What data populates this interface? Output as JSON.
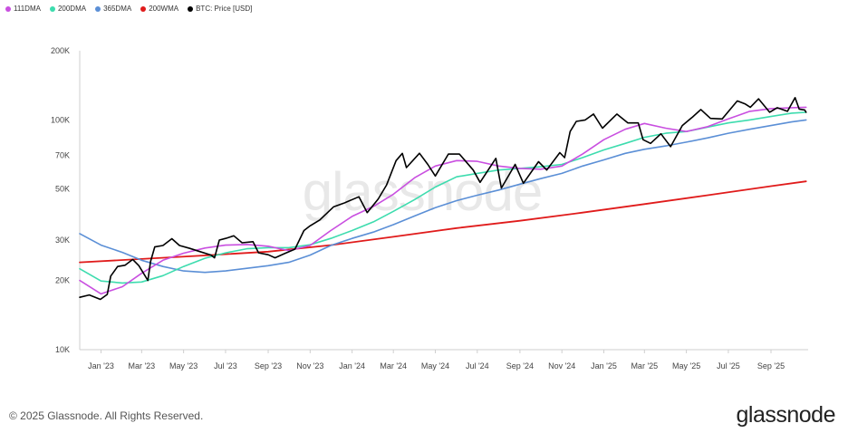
{
  "legend": [
    {
      "label": "111DMA",
      "color": "#c94fe0"
    },
    {
      "label": "200DMA",
      "color": "#3ddcae"
    },
    {
      "label": "365DMA",
      "color": "#5b8fd6"
    },
    {
      "label": "200WMA",
      "color": "#e01b1b"
    },
    {
      "label": "BTC: Price [USD]",
      "color": "#000000"
    }
  ],
  "watermark": "glassnode",
  "footer": {
    "copyright": "© 2025 Glassnode. All Rights Reserved.",
    "logo": "glassnode"
  },
  "chart_data": {
    "type": "line",
    "y_scale": "log",
    "ylim": [
      10000,
      200000
    ],
    "y_ticks": [
      {
        "value": 200000,
        "label": "200K"
      },
      {
        "value": 100000,
        "label": "100K"
      },
      {
        "value": 70000,
        "label": "70K"
      },
      {
        "value": 50000,
        "label": "50K"
      },
      {
        "value": 30000,
        "label": "30K"
      },
      {
        "value": 20000,
        "label": "20K"
      },
      {
        "value": 10000,
        "label": "10K"
      }
    ],
    "xlim": [
      "2022-12-01",
      "2025-10-25"
    ],
    "x_ticks": [
      {
        "date": "2023-01-01",
        "label": "Jan '23"
      },
      {
        "date": "2023-03-01",
        "label": "Mar '23"
      },
      {
        "date": "2023-05-01",
        "label": "May '23"
      },
      {
        "date": "2023-07-01",
        "label": "Jul '23"
      },
      {
        "date": "2023-09-01",
        "label": "Sep '23"
      },
      {
        "date": "2023-11-01",
        "label": "Nov '23"
      },
      {
        "date": "2024-01-01",
        "label": "Jan '24"
      },
      {
        "date": "2024-03-01",
        "label": "Mar '24"
      },
      {
        "date": "2024-05-01",
        "label": "May '24"
      },
      {
        "date": "2024-07-01",
        "label": "Jul '24"
      },
      {
        "date": "2024-09-01",
        "label": "Sep '24"
      },
      {
        "date": "2024-11-01",
        "label": "Nov '24"
      },
      {
        "date": "2025-01-01",
        "label": "Jan '25"
      },
      {
        "date": "2025-03-01",
        "label": "Mar '25"
      },
      {
        "date": "2025-05-01",
        "label": "May '25"
      },
      {
        "date": "2025-07-01",
        "label": "Jul '25"
      },
      {
        "date": "2025-09-01",
        "label": "Sep '25"
      }
    ],
    "series": [
      {
        "name": "BTC: Price [USD]",
        "color": "#000000",
        "width": 1.6,
        "points": [
          [
            "2022-12-01",
            16900
          ],
          [
            "2022-12-15",
            17300
          ],
          [
            "2022-12-31",
            16550
          ],
          [
            "2023-01-10",
            17400
          ],
          [
            "2023-01-15",
            20900
          ],
          [
            "2023-01-25",
            23000
          ],
          [
            "2023-02-05",
            23300
          ],
          [
            "2023-02-16",
            24700
          ],
          [
            "2023-02-25",
            23200
          ],
          [
            "2023-03-10",
            20000
          ],
          [
            "2023-03-14",
            24200
          ],
          [
            "2023-03-20",
            28000
          ],
          [
            "2023-04-01",
            28400
          ],
          [
            "2023-04-14",
            30400
          ],
          [
            "2023-04-25",
            28400
          ],
          [
            "2023-05-10",
            27600
          ],
          [
            "2023-05-25",
            26700
          ],
          [
            "2023-06-10",
            25800
          ],
          [
            "2023-06-15",
            25100
          ],
          [
            "2023-06-22",
            30000
          ],
          [
            "2023-07-01",
            30500
          ],
          [
            "2023-07-13",
            31300
          ],
          [
            "2023-07-25",
            29200
          ],
          [
            "2023-08-10",
            29500
          ],
          [
            "2023-08-18",
            26400
          ],
          [
            "2023-09-01",
            25900
          ],
          [
            "2023-09-11",
            25100
          ],
          [
            "2023-09-25",
            26200
          ],
          [
            "2023-10-10",
            27400
          ],
          [
            "2023-10-23",
            33000
          ],
          [
            "2023-11-01",
            34600
          ],
          [
            "2023-11-15",
            36700
          ],
          [
            "2023-12-05",
            41800
          ],
          [
            "2023-12-20",
            43400
          ],
          [
            "2024-01-11",
            46300
          ],
          [
            "2024-01-23",
            39500
          ],
          [
            "2024-02-08",
            45300
          ],
          [
            "2024-02-20",
            52000
          ],
          [
            "2024-03-05",
            66500
          ],
          [
            "2024-03-14",
            71500
          ],
          [
            "2024-03-20",
            62000
          ],
          [
            "2024-04-08",
            71600
          ],
          [
            "2024-04-20",
            64000
          ],
          [
            "2024-05-01",
            57000
          ],
          [
            "2024-05-20",
            71000
          ],
          [
            "2024-06-05",
            71000
          ],
          [
            "2024-06-25",
            60500
          ],
          [
            "2024-07-05",
            53500
          ],
          [
            "2024-07-28",
            68000
          ],
          [
            "2024-08-05",
            50500
          ],
          [
            "2024-08-25",
            64000
          ],
          [
            "2024-09-06",
            53000
          ],
          [
            "2024-09-28",
            65800
          ],
          [
            "2024-10-10",
            60500
          ],
          [
            "2024-10-29",
            72000
          ],
          [
            "2024-11-05",
            68500
          ],
          [
            "2024-11-13",
            89000
          ],
          [
            "2024-11-22",
            98500
          ],
          [
            "2024-12-05",
            100000
          ],
          [
            "2024-12-17",
            106000
          ],
          [
            "2024-12-30",
            92000
          ],
          [
            "2025-01-20",
            106000
          ],
          [
            "2025-02-05",
            97000
          ],
          [
            "2025-02-20",
            97000
          ],
          [
            "2025-02-27",
            82000
          ],
          [
            "2025-03-10",
            79000
          ],
          [
            "2025-03-25",
            87000
          ],
          [
            "2025-04-08",
            76500
          ],
          [
            "2025-04-25",
            94500
          ],
          [
            "2025-05-10",
            103000
          ],
          [
            "2025-05-22",
            111000
          ],
          [
            "2025-06-05",
            101500
          ],
          [
            "2025-06-22",
            101000
          ],
          [
            "2025-07-14",
            121000
          ],
          [
            "2025-07-25",
            117500
          ],
          [
            "2025-08-02",
            113500
          ],
          [
            "2025-08-14",
            123500
          ],
          [
            "2025-08-30",
            108000
          ],
          [
            "2025-09-10",
            113000
          ],
          [
            "2025-09-25",
            109000
          ],
          [
            "2025-10-06",
            125000
          ],
          [
            "2025-10-12",
            111500
          ],
          [
            "2025-10-20",
            110500
          ],
          [
            "2025-10-22",
            108000
          ]
        ]
      },
      {
        "name": "111DMA",
        "color": "#c94fe0",
        "width": 1.6,
        "points": [
          [
            "2022-12-01",
            20000
          ],
          [
            "2023-01-01",
            17500
          ],
          [
            "2023-02-01",
            18800
          ],
          [
            "2023-03-01",
            21500
          ],
          [
            "2023-04-01",
            24500
          ],
          [
            "2023-05-01",
            26300
          ],
          [
            "2023-06-01",
            27700
          ],
          [
            "2023-07-01",
            28500
          ],
          [
            "2023-08-01",
            28700
          ],
          [
            "2023-09-01",
            28200
          ],
          [
            "2023-10-01",
            27000
          ],
          [
            "2023-11-01",
            28400
          ],
          [
            "2023-12-01",
            33000
          ],
          [
            "2024-01-01",
            38000
          ],
          [
            "2024-02-01",
            42000
          ],
          [
            "2024-03-01",
            47500
          ],
          [
            "2024-04-01",
            56000
          ],
          [
            "2024-05-01",
            63000
          ],
          [
            "2024-06-01",
            66500
          ],
          [
            "2024-07-01",
            66000
          ],
          [
            "2024-08-01",
            63000
          ],
          [
            "2024-09-01",
            61500
          ],
          [
            "2024-10-01",
            61000
          ],
          [
            "2024-11-01",
            63000
          ],
          [
            "2024-12-01",
            71000
          ],
          [
            "2025-01-01",
            82000
          ],
          [
            "2025-02-01",
            91000
          ],
          [
            "2025-03-01",
            96500
          ],
          [
            "2025-04-01",
            92000
          ],
          [
            "2025-05-01",
            89000
          ],
          [
            "2025-06-01",
            93500
          ],
          [
            "2025-07-01",
            101000
          ],
          [
            "2025-08-01",
            109000
          ],
          [
            "2025-09-01",
            112000
          ],
          [
            "2025-10-01",
            113000
          ],
          [
            "2025-10-22",
            113500
          ]
        ]
      },
      {
        "name": "200DMA",
        "color": "#3ddcae",
        "width": 1.6,
        "points": [
          [
            "2022-12-01",
            22500
          ],
          [
            "2023-01-01",
            19900
          ],
          [
            "2023-02-01",
            19500
          ],
          [
            "2023-03-01",
            19700
          ],
          [
            "2023-04-01",
            21000
          ],
          [
            "2023-05-01",
            23000
          ],
          [
            "2023-06-01",
            25000
          ],
          [
            "2023-07-01",
            26400
          ],
          [
            "2023-08-01",
            27500
          ],
          [
            "2023-09-01",
            27800
          ],
          [
            "2023-10-01",
            27800
          ],
          [
            "2023-11-01",
            28600
          ],
          [
            "2023-12-01",
            30500
          ],
          [
            "2024-01-01",
            33000
          ],
          [
            "2024-02-01",
            36000
          ],
          [
            "2024-03-01",
            40000
          ],
          [
            "2024-04-01",
            45000
          ],
          [
            "2024-05-01",
            51000
          ],
          [
            "2024-06-01",
            56500
          ],
          [
            "2024-07-01",
            58500
          ],
          [
            "2024-08-01",
            60500
          ],
          [
            "2024-09-01",
            61500
          ],
          [
            "2024-10-01",
            62500
          ],
          [
            "2024-11-01",
            64000
          ],
          [
            "2024-12-01",
            68500
          ],
          [
            "2025-01-01",
            74000
          ],
          [
            "2025-02-01",
            79000
          ],
          [
            "2025-03-01",
            84000
          ],
          [
            "2025-04-01",
            87500
          ],
          [
            "2025-05-01",
            89000
          ],
          [
            "2025-06-01",
            93000
          ],
          [
            "2025-07-01",
            97000
          ],
          [
            "2025-08-01",
            100000
          ],
          [
            "2025-09-01",
            103500
          ],
          [
            "2025-10-01",
            107000
          ],
          [
            "2025-10-22",
            108000
          ]
        ]
      },
      {
        "name": "365DMA",
        "color": "#5b8fd6",
        "width": 1.6,
        "points": [
          [
            "2022-12-01",
            32000
          ],
          [
            "2023-01-01",
            28500
          ],
          [
            "2023-02-01",
            26500
          ],
          [
            "2023-03-01",
            24500
          ],
          [
            "2023-04-01",
            23000
          ],
          [
            "2023-05-01",
            22000
          ],
          [
            "2023-06-01",
            21700
          ],
          [
            "2023-07-01",
            22000
          ],
          [
            "2023-08-01",
            22600
          ],
          [
            "2023-09-01",
            23200
          ],
          [
            "2023-10-01",
            24000
          ],
          [
            "2023-11-01",
            25800
          ],
          [
            "2023-12-01",
            28400
          ],
          [
            "2024-01-01",
            30500
          ],
          [
            "2024-02-01",
            32500
          ],
          [
            "2024-03-01",
            35000
          ],
          [
            "2024-04-01",
            38200
          ],
          [
            "2024-05-01",
            41500
          ],
          [
            "2024-06-01",
            44500
          ],
          [
            "2024-07-01",
            47000
          ],
          [
            "2024-08-01",
            49500
          ],
          [
            "2024-09-01",
            52500
          ],
          [
            "2024-10-01",
            55500
          ],
          [
            "2024-11-01",
            58500
          ],
          [
            "2024-12-01",
            63000
          ],
          [
            "2025-01-01",
            67000
          ],
          [
            "2025-02-01",
            71500
          ],
          [
            "2025-03-01",
            74500
          ],
          [
            "2025-04-01",
            77000
          ],
          [
            "2025-05-01",
            80000
          ],
          [
            "2025-06-01",
            83500
          ],
          [
            "2025-07-01",
            87500
          ],
          [
            "2025-08-01",
            91000
          ],
          [
            "2025-09-01",
            94500
          ],
          [
            "2025-10-01",
            98000
          ],
          [
            "2025-10-22",
            100000
          ]
        ]
      },
      {
        "name": "200WMA",
        "color": "#e01b1b",
        "width": 1.8,
        "points": [
          [
            "2022-12-01",
            24000
          ],
          [
            "2023-03-01",
            24800
          ],
          [
            "2023-06-01",
            25700
          ],
          [
            "2023-09-01",
            26700
          ],
          [
            "2023-12-01",
            28500
          ],
          [
            "2024-03-01",
            31000
          ],
          [
            "2024-06-01",
            33800
          ],
          [
            "2024-09-01",
            36400
          ],
          [
            "2024-12-01",
            39500
          ],
          [
            "2025-03-01",
            43000
          ],
          [
            "2025-06-01",
            47000
          ],
          [
            "2025-09-01",
            51500
          ],
          [
            "2025-10-22",
            54000
          ]
        ]
      }
    ]
  }
}
